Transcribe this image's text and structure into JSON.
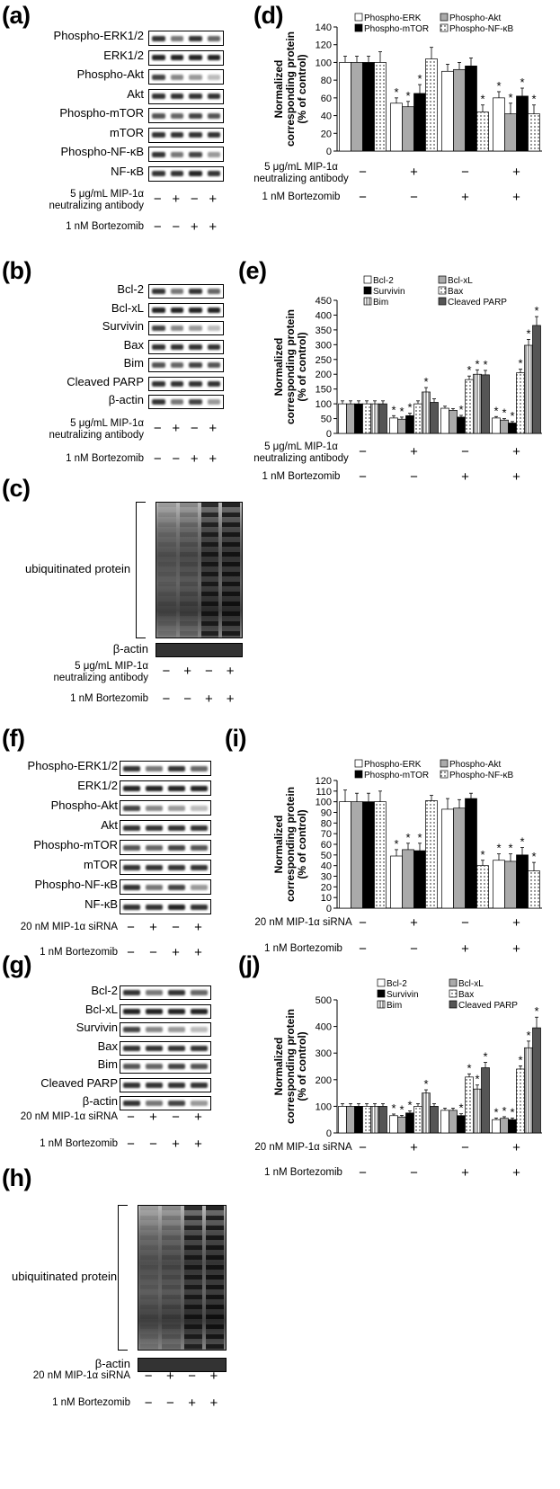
{
  "panels": {
    "a": {
      "letter": "(a)",
      "rows": [
        "Phospho-ERK1/2",
        "ERK1/2",
        "Phospho-Akt",
        "Akt",
        "Phospho-mTOR",
        "mTOR",
        "Phospho-NF-κB",
        "NF-κB"
      ],
      "conditions": [
        {
          "label": "5 μg/mL MIP-1α\nneutralizing antibody",
          "signs": [
            "−",
            "+",
            "−",
            "+"
          ]
        },
        {
          "label": "1 nM Bortezomib",
          "signs": [
            "−",
            "−",
            "+",
            "+"
          ]
        }
      ]
    },
    "b": {
      "letter": "(b)",
      "rows": [
        "Bcl-2",
        "Bcl-xL",
        "Survivin",
        "Bax",
        "Bim",
        "Cleaved PARP",
        "β-actin"
      ],
      "conditions": [
        {
          "label": "5 μg/mL MIP-1α\nneutralizing antibody",
          "signs": [
            "−",
            "+",
            "−",
            "+"
          ]
        },
        {
          "label": "1 nM Bortezomib",
          "signs": [
            "−",
            "−",
            "+",
            "+"
          ]
        }
      ]
    },
    "c": {
      "letter": "(c)",
      "bracket_label": "ubiquitinated protein",
      "loading": "β-actin",
      "conditions": [
        {
          "label": "5 μg/mL MIP-1α\nneutralizing antibody",
          "signs": [
            "−",
            "+",
            "−",
            "+"
          ]
        },
        {
          "label": "1 nM Bortezomib",
          "signs": [
            "−",
            "−",
            "+",
            "+"
          ]
        }
      ]
    },
    "f": {
      "letter": "(f)",
      "rows": [
        "Phospho-ERK1/2",
        "ERK1/2",
        "Phospho-Akt",
        "Akt",
        "Phospho-mTOR",
        "mTOR",
        "Phospho-NF-κB",
        "NF-κB"
      ],
      "conditions": [
        {
          "label": "20 nM MIP-1α siRNA",
          "signs": [
            "−",
            "+",
            "−",
            "+"
          ]
        },
        {
          "label": "1 nM Bortezomib",
          "signs": [
            "−",
            "−",
            "+",
            "+"
          ]
        }
      ]
    },
    "g": {
      "letter": "(g)",
      "rows": [
        "Bcl-2",
        "Bcl-xL",
        "Survivin",
        "Bax",
        "Bim",
        "Cleaved PARP",
        "β-actin"
      ],
      "conditions": [
        {
          "label": "20 nM MIP-1α siRNA",
          "signs": [
            "−",
            "+",
            "−",
            "+"
          ]
        },
        {
          "label": "1 nM Bortezomib",
          "signs": [
            "−",
            "−",
            "+",
            "+"
          ]
        }
      ]
    },
    "h": {
      "letter": "(h)",
      "bracket_label": "ubiquitinated protein",
      "loading": "β-actin",
      "conditions": [
        {
          "label": "20 nM MIP-1α siRNA",
          "signs": [
            "−",
            "+",
            "−",
            "+"
          ]
        },
        {
          "label": "1 nM Bortezomib",
          "signs": [
            "−",
            "−",
            "+",
            "+"
          ]
        }
      ]
    }
  },
  "chart_data": [
    {
      "panel": "(d)",
      "type": "bar",
      "ylabel": "Normalized\ncorresponding protein\n(% of control)",
      "ylim": [
        0,
        140
      ],
      "yticks": [
        0,
        20,
        40,
        60,
        80,
        100,
        120,
        140
      ],
      "series": [
        {
          "name": "Phospho-ERK",
          "style": "white",
          "values": [
            100,
            54,
            90,
            60
          ],
          "err": [
            7,
            6,
            8,
            7
          ],
          "star": [
            false,
            true,
            false,
            true
          ]
        },
        {
          "name": "Phospho-Akt",
          "style": "gray",
          "values": [
            100,
            50,
            92,
            42
          ],
          "err": [
            7,
            6,
            8,
            12
          ],
          "star": [
            false,
            true,
            false,
            true
          ]
        },
        {
          "name": "Phospho-mTOR",
          "style": "black",
          "values": [
            100,
            65,
            96,
            62
          ],
          "err": [
            7,
            10,
            9,
            9
          ],
          "star": [
            false,
            true,
            false,
            true
          ]
        },
        {
          "name": "Phospho-NF-κB",
          "style": "dots",
          "values": [
            100,
            104,
            44,
            42
          ],
          "err": [
            12,
            13,
            8,
            10
          ],
          "star": [
            false,
            false,
            true,
            true
          ]
        }
      ],
      "conditions": [
        {
          "label": "5 μg/mL MIP-1α\nneutralizing antibody",
          "signs": [
            "−",
            "+",
            "−",
            "+"
          ]
        },
        {
          "label": "1 nM Bortezomib",
          "signs": [
            "−",
            "−",
            "+",
            "+"
          ]
        }
      ]
    },
    {
      "panel": "(e)",
      "type": "bar",
      "ylabel": "Normalized\ncorresponding protein\n(% of control)",
      "ylim": [
        0,
        450
      ],
      "yticks": [
        0,
        50,
        100,
        150,
        200,
        250,
        300,
        350,
        400,
        450
      ],
      "series": [
        {
          "name": "Bcl-2",
          "style": "white",
          "values": [
            100,
            52,
            85,
            52
          ],
          "err": [
            10,
            8,
            7,
            5
          ],
          "star": [
            false,
            true,
            false,
            true
          ]
        },
        {
          "name": "Bcl-xL",
          "style": "gray",
          "values": [
            100,
            48,
            78,
            45
          ],
          "err": [
            10,
            7,
            6,
            5
          ],
          "star": [
            false,
            true,
            false,
            true
          ]
        },
        {
          "name": "Survivin",
          "style": "black",
          "values": [
            100,
            60,
            55,
            35
          ],
          "err": [
            10,
            8,
            6,
            5
          ],
          "star": [
            false,
            true,
            true,
            true
          ]
        },
        {
          "name": "Bax",
          "style": "dots",
          "values": [
            100,
            100,
            182,
            205
          ],
          "err": [
            10,
            10,
            12,
            12
          ],
          "star": [
            false,
            false,
            true,
            true
          ]
        },
        {
          "name": "Bim",
          "style": "vlines",
          "values": [
            100,
            140,
            200,
            298
          ],
          "err": [
            10,
            15,
            15,
            20
          ],
          "star": [
            false,
            true,
            true,
            true
          ]
        },
        {
          "name": "Cleaved PARP",
          "style": "dark",
          "values": [
            100,
            105,
            198,
            365
          ],
          "err": [
            10,
            12,
            15,
            30
          ],
          "star": [
            false,
            false,
            true,
            true
          ]
        }
      ],
      "conditions": [
        {
          "label": "5 μg/mL MIP-1α\nneutralizing antibody",
          "signs": [
            "−",
            "+",
            "−",
            "+"
          ]
        },
        {
          "label": "1 nM Bortezomib",
          "signs": [
            "−",
            "−",
            "+",
            "+"
          ]
        }
      ]
    },
    {
      "panel": "(i)",
      "type": "bar",
      "ylabel": "Normalized\ncorresponding protein\n(% of control)",
      "ylim": [
        0,
        120
      ],
      "yticks": [
        0,
        10,
        20,
        30,
        40,
        50,
        60,
        70,
        80,
        90,
        100,
        110,
        120
      ],
      "series": [
        {
          "name": "Phospho-ERK",
          "style": "white",
          "values": [
            100,
            49,
            93,
            45
          ],
          "err": [
            11,
            6,
            10,
            6
          ],
          "star": [
            false,
            true,
            false,
            true
          ]
        },
        {
          "name": "Phospho-Akt",
          "style": "gray",
          "values": [
            100,
            55,
            94,
            44
          ],
          "err": [
            8,
            6,
            8,
            7
          ],
          "star": [
            false,
            true,
            false,
            true
          ]
        },
        {
          "name": "Phospho-mTOR",
          "style": "black",
          "values": [
            100,
            54,
            103,
            50
          ],
          "err": [
            8,
            7,
            5,
            7
          ],
          "star": [
            false,
            true,
            false,
            true
          ]
        },
        {
          "name": "Phospho-NF-κB",
          "style": "dots",
          "values": [
            100,
            101,
            40,
            35
          ],
          "err": [
            10,
            5,
            5,
            8
          ],
          "star": [
            false,
            false,
            true,
            true
          ]
        }
      ],
      "conditions": [
        {
          "label": "20 nM MIP-1α siRNA",
          "signs": [
            "−",
            "+",
            "−",
            "+"
          ]
        },
        {
          "label": "1 nM Bortezomib",
          "signs": [
            "−",
            "−",
            "+",
            "+"
          ]
        }
      ]
    },
    {
      "panel": "(j)",
      "type": "bar",
      "ylabel": "Normalized\ncorresponding protein\n(% of control)",
      "ylim": [
        0,
        500
      ],
      "yticks": [
        0,
        100,
        200,
        300,
        400,
        500
      ],
      "series": [
        {
          "name": "Bcl-2",
          "style": "white",
          "values": [
            100,
            65,
            85,
            50
          ],
          "err": [
            10,
            6,
            8,
            6
          ],
          "star": [
            false,
            true,
            false,
            true
          ]
        },
        {
          "name": "Bcl-xL",
          "style": "gray",
          "values": [
            100,
            60,
            85,
            55
          ],
          "err": [
            10,
            6,
            8,
            6
          ],
          "star": [
            false,
            true,
            false,
            true
          ]
        },
        {
          "name": "Survivin",
          "style": "black",
          "values": [
            100,
            75,
            65,
            50
          ],
          "err": [
            10,
            8,
            7,
            6
          ],
          "star": [
            false,
            true,
            true,
            true
          ]
        },
        {
          "name": "Bax",
          "style": "dots",
          "values": [
            100,
            100,
            210,
            240
          ],
          "err": [
            10,
            10,
            12,
            12
          ],
          "star": [
            false,
            false,
            true,
            true
          ]
        },
        {
          "name": "Bim",
          "style": "vlines",
          "values": [
            100,
            150,
            165,
            320
          ],
          "err": [
            10,
            12,
            15,
            25
          ],
          "star": [
            false,
            true,
            true,
            true
          ]
        },
        {
          "name": "Cleaved PARP",
          "style": "dark",
          "values": [
            100,
            100,
            245,
            395
          ],
          "err": [
            10,
            10,
            20,
            40
          ],
          "star": [
            false,
            false,
            true,
            true
          ]
        }
      ],
      "conditions": [
        {
          "label": "20 nM MIP-1α siRNA",
          "signs": [
            "−",
            "+",
            "−",
            "+"
          ]
        },
        {
          "label": "1 nM Bortezomib",
          "signs": [
            "−",
            "−",
            "+",
            "+"
          ]
        }
      ]
    }
  ]
}
